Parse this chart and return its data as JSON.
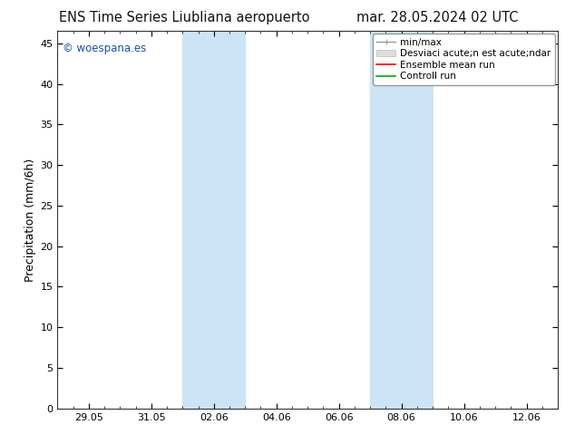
{
  "title_left": "ENS Time Series Liubliana aeropuerto",
  "title_right": "mar. 28.05.2024 02 UTC",
  "ylabel": "Precipitation (mm/6h)",
  "ylim": [
    0,
    46.5
  ],
  "yticks": [
    0,
    5,
    10,
    15,
    20,
    25,
    30,
    35,
    40,
    45
  ],
  "xtick_labels": [
    "29.05",
    "31.05",
    "02.06",
    "04.06",
    "06.06",
    "08.06",
    "10.06",
    "12.06"
  ],
  "xtick_positions": [
    1,
    3,
    5,
    7,
    9,
    11,
    13,
    15
  ],
  "xlim": [
    0,
    16
  ],
  "shade_bands": [
    {
      "start": 4.0,
      "end": 6.0
    },
    {
      "start": 10.0,
      "end": 12.0
    }
  ],
  "shade_color": "#cce4f5",
  "watermark_text": "© woespana.es",
  "watermark_color": "#1a4faa",
  "legend_labels": [
    "min/max",
    "Desviaci acute;n est acute;ndar",
    "Ensemble mean run",
    "Controll run"
  ],
  "legend_colors": [
    "#999999",
    "#cccccc",
    "#ff0000",
    "#00aa00"
  ],
  "background_color": "#ffffff",
  "plot_bg_color": "#ffffff",
  "title_fontsize": 10.5,
  "tick_fontsize": 8,
  "ylabel_fontsize": 9,
  "legend_fontsize": 7.5
}
